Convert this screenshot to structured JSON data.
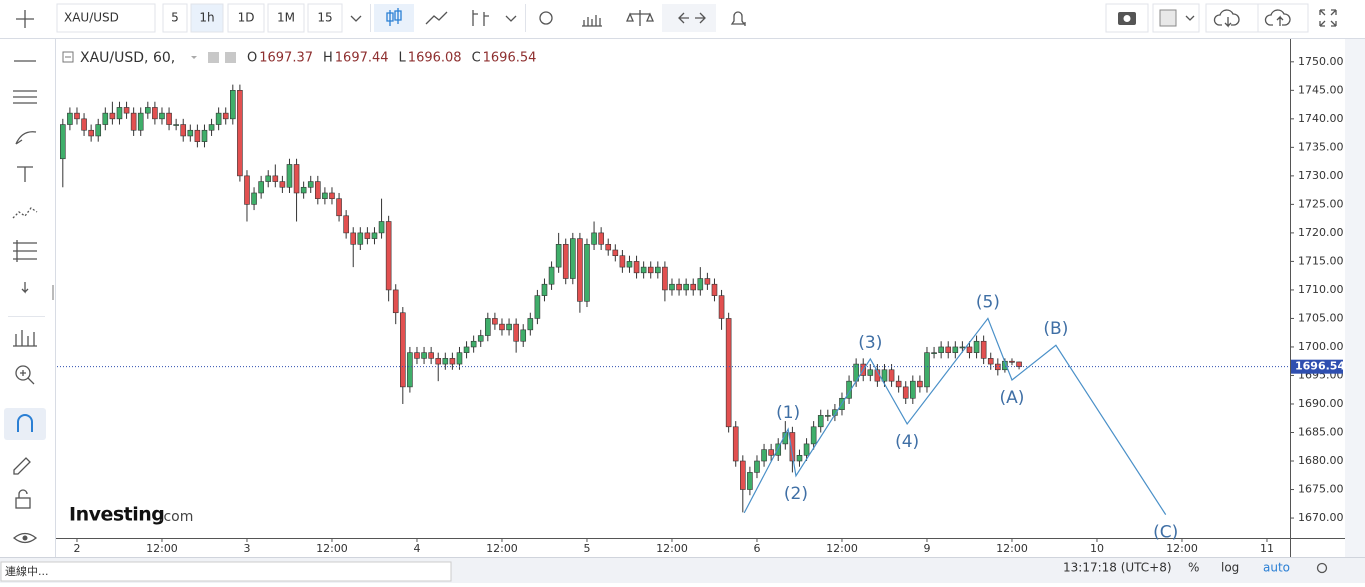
{
  "toolbar": {
    "symbol": "XAU/USD",
    "intervals": [
      "5",
      "1h",
      "1D",
      "1M",
      "15"
    ],
    "active_interval": 1
  },
  "chart_data": {
    "type": "candlestick",
    "title": "XAU/USD, 60,",
    "ohlc_labels": [
      "O",
      "H",
      "L",
      "C"
    ],
    "up_color": "#3fae6a",
    "down_color": "#e25050",
    "outline_color": "#333333",
    "grid": false,
    "x": [
      -2,
      -1,
      0,
      1,
      2,
      3,
      4,
      5,
      6,
      7,
      8,
      9,
      10,
      11,
      12,
      13,
      14,
      15,
      16,
      17,
      18,
      19,
      20,
      21,
      22,
      23,
      24,
      25,
      26,
      27,
      28,
      29,
      30,
      31,
      32,
      33,
      34,
      35,
      36,
      37,
      38,
      39,
      40,
      41,
      42,
      43,
      44,
      45,
      46,
      47,
      48,
      49,
      50,
      51,
      52,
      53,
      54,
      55,
      56,
      57,
      58,
      59,
      60,
      61,
      62,
      63,
      64,
      65,
      66,
      67,
      68,
      69,
      70,
      71,
      72,
      73,
      74,
      75,
      76,
      77,
      78,
      79,
      80,
      81,
      82,
      83,
      84,
      85,
      86,
      87,
      88,
      89,
      90,
      91,
      92,
      93,
      94,
      95,
      96,
      97,
      98,
      99,
      100,
      101,
      102,
      103,
      104,
      105,
      106,
      107,
      108,
      109,
      110,
      111,
      112,
      113,
      114,
      115,
      116,
      117,
      118,
      119,
      120,
      121,
      122,
      123,
      124,
      125,
      126,
      127,
      128,
      129,
      130,
      131,
      132,
      133
    ],
    "open": [
      1733,
      1739,
      1741,
      1740,
      1738,
      1737,
      1739,
      1741,
      1740,
      1742,
      1741,
      1738,
      1741,
      1742,
      1740,
      1741,
      1739,
      1739,
      1737,
      1738,
      1736,
      1738,
      1739,
      1741,
      1740,
      1745,
      1730,
      1725,
      1727,
      1729,
      1730,
      1729,
      1728,
      1732,
      1727,
      1728,
      1729,
      1726,
      1727,
      1726,
      1723,
      1720,
      1718,
      1720,
      1719,
      1720,
      1722,
      1710,
      1706,
      1693,
      1699,
      1698,
      1699,
      1698,
      1697,
      1698,
      1697,
      1699,
      1700,
      1701,
      1702,
      1705,
      1704,
      1703,
      1704,
      1701,
      1703,
      1705,
      1709,
      1711,
      1714,
      1718,
      1712,
      1719,
      1708,
      1718,
      1720,
      1718,
      1717,
      1716,
      1714,
      1715,
      1713,
      1714,
      1713,
      1714,
      1710,
      1711,
      1710,
      1711,
      1710,
      1712,
      1711,
      1709,
      1705,
      1686,
      1680,
      1675,
      1678,
      1680,
      1682,
      1681,
      1683,
      1685,
      1680,
      1681,
      1683,
      1686,
      1688,
      1688,
      1689,
      1691,
      1694,
      1697,
      1695,
      1696,
      1694,
      1696,
      1694,
      1693,
      1691,
      1694,
      1693,
      1699,
      1699,
      1700,
      1699,
      1700,
      1700,
      1699,
      1701,
      1698,
      1697,
      1696,
      1697.5,
      1697.37
    ],
    "high": [
      1740,
      1742,
      1742,
      1741,
      1739,
      1740,
      1742,
      1743,
      1743,
      1743,
      1742,
      1742,
      1743,
      1743,
      1742,
      1742,
      1740,
      1740,
      1739,
      1739,
      1739,
      1740,
      1742,
      1742,
      1746,
      1746,
      1731,
      1728,
      1730,
      1731,
      1732,
      1730,
      1733,
      1733,
      1729,
      1730,
      1730,
      1728,
      1728,
      1727,
      1724,
      1721,
      1721,
      1721,
      1721,
      1726,
      1723,
      1711,
      1707,
      1700,
      1700,
      1700,
      1700,
      1699,
      1699,
      1699,
      1700,
      1701,
      1702,
      1703,
      1706,
      1706,
      1705,
      1705,
      1705,
      1704,
      1706,
      1710,
      1712,
      1715,
      1720,
      1719,
      1720,
      1720,
      1719,
      1722,
      1721,
      1719,
      1718,
      1717,
      1716,
      1716,
      1715,
      1715,
      1715,
      1715,
      1712,
      1712,
      1712,
      1712,
      1714,
      1713,
      1712,
      1710,
      1706,
      1687,
      1681,
      1679,
      1681,
      1683,
      1683,
      1684,
      1687,
      1686,
      1682,
      1684,
      1687,
      1689,
      1689,
      1690,
      1692,
      1695,
      1698,
      1698,
      1697,
      1697,
      1697,
      1697,
      1695,
      1694,
      1695,
      1695,
      1700,
      1700,
      1701,
      1701,
      1701,
      1701,
      1701,
      1702,
      1702,
      1699,
      1698,
      1698,
      1698,
      1697.44
    ],
    "low": [
      1728,
      1738,
      1739,
      1737,
      1736,
      1736,
      1738,
      1739,
      1739,
      1740,
      1737,
      1737,
      1740,
      1739,
      1739,
      1738,
      1738,
      1736,
      1736,
      1735,
      1735,
      1737,
      1738,
      1739,
      1739,
      1729,
      1722,
      1724,
      1726,
      1728,
      1728,
      1727,
      1727,
      1722,
      1726,
      1727,
      1725,
      1725,
      1725,
      1722,
      1719,
      1714,
      1717,
      1718,
      1718,
      1719,
      1708,
      1704,
      1690,
      1692,
      1697,
      1697,
      1697,
      1694,
      1696,
      1696,
      1696,
      1698,
      1699,
      1700,
      1701,
      1703,
      1702,
      1702,
      1699,
      1700,
      1702,
      1704,
      1708,
      1710,
      1713,
      1711,
      1711,
      1706,
      1707,
      1717,
      1717,
      1716,
      1715,
      1713,
      1713,
      1712,
      1712,
      1712,
      1712,
      1708,
      1709,
      1709,
      1709,
      1709,
      1709,
      1710,
      1708,
      1703,
      1685,
      1679,
      1671,
      1674,
      1677,
      1679,
      1680,
      1680,
      1682,
      1678,
      1679,
      1680,
      1682,
      1685,
      1687,
      1687,
      1688,
      1690,
      1693,
      1694,
      1694,
      1693,
      1693,
      1693,
      1692,
      1690,
      1690,
      1692,
      1692,
      1698,
      1698,
      1698,
      1698,
      1699,
      1698,
      1698,
      1697,
      1696,
      1695,
      1695.5,
      1696.8,
      1696.08
    ],
    "close": [
      1739,
      1741,
      1740,
      1738,
      1737,
      1739,
      1741,
      1740,
      1742,
      1741,
      1738,
      1741,
      1742,
      1740,
      1741,
      1739,
      1739,
      1737,
      1738,
      1736,
      1738,
      1739,
      1741,
      1740,
      1745,
      1730,
      1725,
      1727,
      1729,
      1730,
      1729,
      1728,
      1732,
      1727,
      1728,
      1729,
      1726,
      1727,
      1726,
      1723,
      1720,
      1718,
      1720,
      1719,
      1720,
      1722,
      1710,
      1706,
      1693,
      1699,
      1698,
      1699,
      1698,
      1697,
      1698,
      1697,
      1699,
      1700,
      1701,
      1702,
      1705,
      1704,
      1703,
      1704,
      1701,
      1703,
      1705,
      1709,
      1711,
      1714,
      1718,
      1712,
      1719,
      1708,
      1718,
      1720,
      1718,
      1717,
      1716,
      1714,
      1715,
      1713,
      1714,
      1713,
      1714,
      1710,
      1711,
      1710,
      1711,
      1710,
      1712,
      1711,
      1709,
      1705,
      1686,
      1680,
      1675,
      1678,
      1680,
      1682,
      1681,
      1683,
      1685,
      1680,
      1681,
      1683,
      1686,
      1688,
      1688,
      1689,
      1691,
      1694,
      1697,
      1695,
      1696,
      1694,
      1696,
      1694,
      1693,
      1691,
      1694,
      1693,
      1699,
      1699,
      1700,
      1699,
      1700,
      1700,
      1699,
      1701,
      1698,
      1697,
      1696,
      1697.5,
      1697.3,
      1696.54
    ],
    "xlim": [
      -2.82,
      171.25
    ],
    "ylim": [
      1666.5,
      1754
    ],
    "xticks": [
      {
        "value": 0,
        "label": "2"
      },
      {
        "value": 12,
        "label": "12:00"
      },
      {
        "value": 24,
        "label": "3"
      },
      {
        "value": 36,
        "label": "12:00"
      },
      {
        "value": 48,
        "label": "4"
      },
      {
        "value": 60,
        "label": "12:00"
      },
      {
        "value": 72,
        "label": "5"
      },
      {
        "value": 84,
        "label": "12:00"
      },
      {
        "value": 96,
        "label": "6"
      },
      {
        "value": 108,
        "label": "12:00"
      },
      {
        "value": 120,
        "label": "9"
      },
      {
        "value": 132,
        "label": "12:00"
      },
      {
        "value": 144,
        "label": "10"
      },
      {
        "value": 156,
        "label": "12:00"
      },
      {
        "value": 168,
        "label": "11"
      }
    ],
    "yticks": [
      {
        "value": 1670,
        "label": "1670.00"
      },
      {
        "value": 1675,
        "label": "1675.00"
      },
      {
        "value": 1680,
        "label": "1680.00"
      },
      {
        "value": 1685,
        "label": "1685.00"
      },
      {
        "value": 1690,
        "label": "1690.00"
      },
      {
        "value": 1695,
        "label": "1695.00"
      },
      {
        "value": 1700,
        "label": "1700.00"
      },
      {
        "value": 1705,
        "label": "1705.00"
      },
      {
        "value": 1710,
        "label": "1710.00"
      },
      {
        "value": 1715,
        "label": "1715.00"
      },
      {
        "value": 1720,
        "label": "1720.00"
      },
      {
        "value": 1725,
        "label": "1725.00"
      },
      {
        "value": 1730,
        "label": "1730.00"
      },
      {
        "value": 1735,
        "label": "1735.00"
      },
      {
        "value": 1740,
        "label": "1740.00"
      },
      {
        "value": 1745,
        "label": "1745.00"
      },
      {
        "value": 1750,
        "label": "1750.00"
      }
    ],
    "price_line_color": "#2f4fb0",
    "wave": {
      "color": "#4a90c8",
      "x": [
        94.2,
        100.4,
        101.5,
        112,
        117.2,
        128.6,
        132,
        138.2,
        153.7
      ],
      "y": [
        1670.9,
        1685.6,
        1677.4,
        1697.9,
        1686.5,
        1705,
        1694.2,
        1700.3,
        1670.6
      ],
      "labels": [
        null,
        "(1)",
        "(2)",
        "(3)",
        "(4)",
        "(5)",
        "(A)",
        "(B)",
        "(C)"
      ]
    }
  },
  "logo": {
    "brand": "Investing",
    "suffix": ".com"
  },
  "status": {
    "connection": "連線中...",
    "clock": "13:17:18 (UTC+8)",
    "scale_buttons": [
      "%",
      "log",
      "auto"
    ]
  }
}
